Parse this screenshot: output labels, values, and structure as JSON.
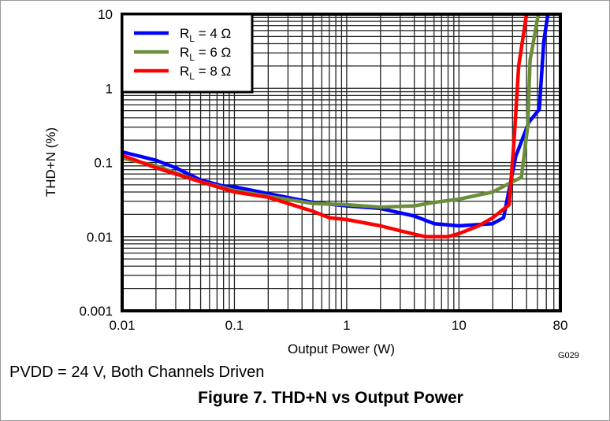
{
  "chart_data": {
    "type": "line",
    "title": "Figure 7. THD+N vs Output Power",
    "subtitle": "PVDD = 24 V, Both Channels Driven",
    "xlabel": "Output Power (W)",
    "ylabel": "THD+N (%)",
    "xscale": "log",
    "yscale": "log",
    "xlim": [
      0.01,
      80
    ],
    "ylim": [
      0.001,
      10
    ],
    "xticks": [
      "0.01",
      "0.1",
      "1",
      "10",
      "80"
    ],
    "yticks": [
      "10",
      "1",
      "0.1",
      "0.01",
      "0.001"
    ],
    "grid": true,
    "legend_position": "top-left",
    "figure_id": "G029",
    "series": [
      {
        "name": "RL = 4 Ω",
        "label_main": "R",
        "label_sub": "L",
        "label_rest": " = 4 Ω",
        "color": "#0000ff",
        "x": [
          0.01,
          0.02,
          0.03,
          0.05,
          0.08,
          0.1,
          0.2,
          0.5,
          1,
          2,
          4,
          6,
          10,
          20,
          25,
          32,
          42,
          52,
          57,
          62
        ],
        "y": [
          0.139,
          0.107,
          0.085,
          0.058,
          0.048,
          0.047,
          0.038,
          0.029,
          0.026,
          0.024,
          0.019,
          0.015,
          0.014,
          0.015,
          0.018,
          0.12,
          0.35,
          0.52,
          4.3,
          10
        ]
      },
      {
        "name": "RL = 6 Ω",
        "label_main": "R",
        "label_sub": "L",
        "label_rest": " = 6 Ω",
        "color": "#6b8e3a",
        "x": [
          0.01,
          0.02,
          0.05,
          0.1,
          0.2,
          0.5,
          1,
          2,
          4,
          6,
          10,
          20,
          30,
          36,
          41,
          43,
          51
        ],
        "y": [
          0.115,
          0.09,
          0.055,
          0.042,
          0.035,
          0.028,
          0.027,
          0.025,
          0.026,
          0.029,
          0.032,
          0.04,
          0.055,
          0.063,
          0.31,
          2.4,
          10
        ]
      },
      {
        "name": "RL = 8 Ω",
        "label_main": "R",
        "label_sub": "L",
        "label_rest": " = 8 Ω",
        "color": "#ff0000",
        "x": [
          0.01,
          0.02,
          0.05,
          0.1,
          0.2,
          0.5,
          0.7,
          1,
          2,
          3,
          5,
          8,
          10,
          15,
          20,
          28,
          31,
          34,
          40
        ],
        "y": [
          0.125,
          0.085,
          0.055,
          0.04,
          0.034,
          0.022,
          0.018,
          0.017,
          0.014,
          0.012,
          0.01,
          0.01,
          0.011,
          0.014,
          0.018,
          0.027,
          0.2,
          2.0,
          10
        ]
      }
    ]
  }
}
